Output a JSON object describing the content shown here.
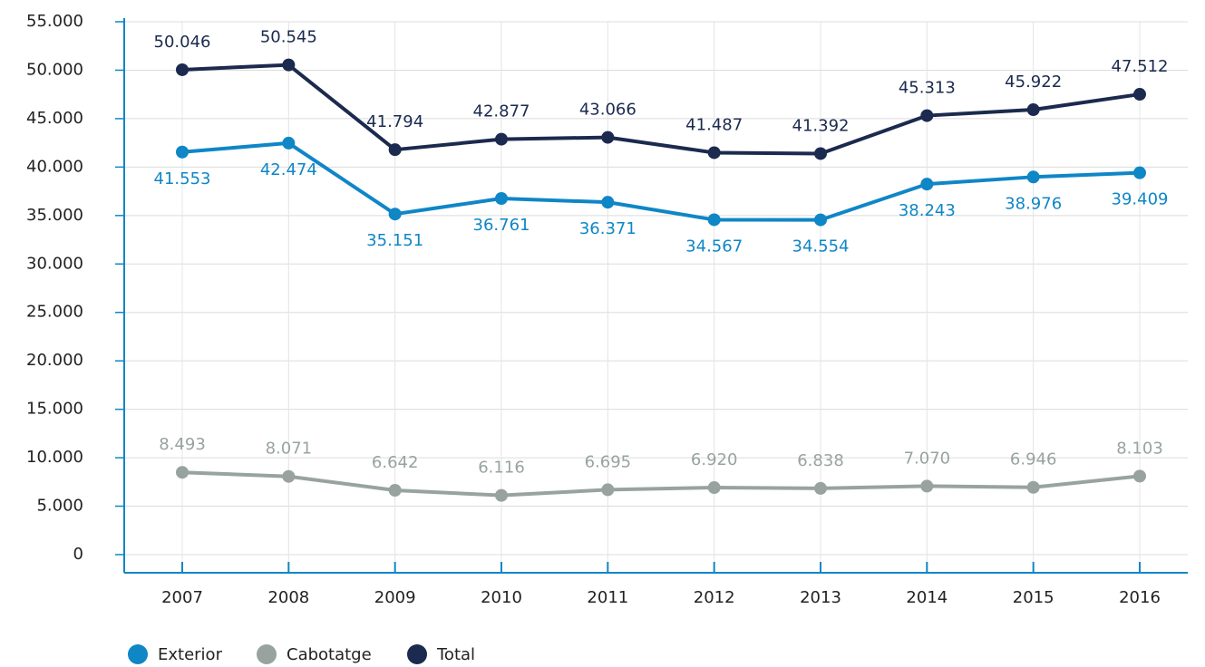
{
  "chart_data": {
    "type": "line",
    "categories": [
      "2007",
      "2008",
      "2009",
      "2010",
      "2011",
      "2012",
      "2013",
      "2014",
      "2015",
      "2016"
    ],
    "series": [
      {
        "name": "Exterior",
        "color": "#0f86c6",
        "values": [
          41553,
          42474,
          35151,
          36761,
          36371,
          34567,
          34554,
          38243,
          38976,
          39409
        ],
        "value_labels": [
          "41.553",
          "42.474",
          "35.151",
          "36.761",
          "36.371",
          "34.567",
          "34.554",
          "38.243",
          "38.976",
          "39.409"
        ],
        "label_position": "below"
      },
      {
        "name": "Cabotatge",
        "color": "#98a39f",
        "values": [
          8493,
          8071,
          6642,
          6116,
          6695,
          6920,
          6838,
          7070,
          6946,
          8103
        ],
        "value_labels": [
          "8.493",
          "8.071",
          "6.642",
          "6.116",
          "6.695",
          "6.920",
          "6.838",
          "7.070",
          "6.946",
          "8.103"
        ],
        "label_position": "above"
      },
      {
        "name": "Total",
        "color": "#1b2a4e",
        "values": [
          50046,
          50545,
          41794,
          42877,
          43066,
          41487,
          41392,
          45313,
          45922,
          47512
        ],
        "value_labels": [
          "50.046",
          "50.545",
          "41.794",
          "42.877",
          "43.066",
          "41.487",
          "41.392",
          "45.313",
          "45.922",
          "47.512"
        ],
        "label_position": "above"
      }
    ],
    "ylim": [
      0,
      55000
    ],
    "yticks": [
      0,
      {
        "value": 5000,
        "label": "5.000"
      },
      {
        "value": 10000,
        "label": "10.000"
      },
      {
        "value": 15000,
        "label": "15.000"
      },
      {
        "value": 20000,
        "label": "20.000"
      },
      {
        "value": 25000,
        "label": "25.000"
      },
      {
        "value": 30000,
        "label": "30.000"
      },
      {
        "value": 35000,
        "label": "35.000"
      },
      {
        "value": 40000,
        "label": "40.000"
      },
      {
        "value": 45000,
        "label": "45.000"
      },
      {
        "value": 50000,
        "label": "50.000"
      },
      {
        "value": 55000,
        "label": "55.000"
      }
    ],
    "grid": true,
    "legend": "bottom-left"
  }
}
